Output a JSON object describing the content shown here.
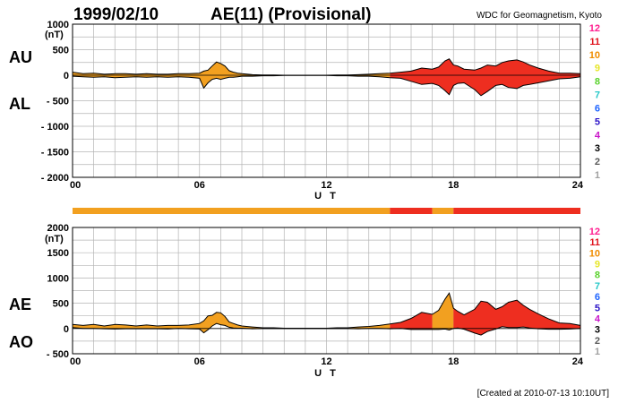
{
  "header": {
    "date": "1999/02/10",
    "title": "AE(11) (Provisional)",
    "source": "WDC for Geomagnetism, Kyoto"
  },
  "footer": {
    "created": "[Created at 2010-07-13 10:10UT]"
  },
  "colors": {
    "grid": "#b4b4b4",
    "band": "#f2a020",
    "band_hi": "#ee2e20",
    "fill_orange": "#f2a020",
    "fill_red": "#ee2e20",
    "outline": "#000000"
  },
  "chart_data": [
    {
      "type": "area",
      "name": "AU/AL panel",
      "series_labels": [
        "AU",
        "AL"
      ],
      "unit_label": "(nT)",
      "xlabel": "U T",
      "xlim": [
        0,
        24
      ],
      "x_ticks": [
        "00",
        "06",
        "12",
        "18",
        "24"
      ],
      "ylim": [
        -2000,
        1000
      ],
      "y_ticks": [
        "1000",
        "500",
        "0",
        "- 500",
        "- 1000",
        "- 1500",
        "- 2000"
      ],
      "legend_numbers": [
        "12",
        "11",
        "10",
        "9",
        "8",
        "7",
        "6",
        "5",
        "4",
        "3",
        "2",
        "1"
      ],
      "legend_colors": [
        "#ff1e90",
        "#e0141e",
        "#f08c00",
        "#e6e628",
        "#5ad22d",
        "#28c8c8",
        "#1e64ff",
        "#2d14c8",
        "#c814c8",
        "#000000",
        "#5a5a5a",
        "#a0a0a0"
      ],
      "station_count_segments": [
        {
          "from": 0,
          "to": 15,
          "stations": 10
        },
        {
          "from": 15,
          "to": 24,
          "stations": 11
        }
      ],
      "x": [
        0,
        0.5,
        1,
        1.5,
        2,
        2.5,
        3,
        3.5,
        4,
        4.5,
        5,
        5.5,
        6,
        6.2,
        6.4,
        6.6,
        6.8,
        7,
        7.2,
        7.4,
        7.6,
        7.8,
        8,
        8.5,
        9,
        9.5,
        10,
        10.5,
        11,
        11.5,
        12,
        12.5,
        13,
        13.5,
        14,
        14.5,
        15,
        15.5,
        16,
        16.5,
        17,
        17.3,
        17.6,
        17.8,
        18,
        18.2,
        18.5,
        19,
        19.3,
        19.6,
        20,
        20.3,
        20.6,
        21,
        21.3,
        21.6,
        22,
        22.5,
        23,
        23.5,
        24
      ],
      "series": [
        {
          "name": "AU",
          "values": [
            60,
            30,
            40,
            20,
            30,
            30,
            20,
            30,
            20,
            20,
            30,
            30,
            40,
            80,
            100,
            180,
            260,
            230,
            180,
            90,
            60,
            40,
            30,
            10,
            5,
            5,
            0,
            0,
            0,
            0,
            0,
            5,
            5,
            10,
            20,
            30,
            40,
            60,
            80,
            140,
            120,
            160,
            280,
            320,
            200,
            180,
            120,
            100,
            140,
            200,
            180,
            250,
            280,
            300,
            260,
            200,
            140,
            80,
            40,
            40,
            30
          ]
        },
        {
          "name": "AL",
          "values": [
            -20,
            -30,
            -40,
            -30,
            -50,
            -40,
            -30,
            -40,
            -30,
            -40,
            -30,
            -40,
            -60,
            -250,
            -150,
            -80,
            -60,
            -80,
            -60,
            -40,
            -40,
            -30,
            -20,
            -20,
            -10,
            -10,
            -5,
            -5,
            -5,
            -5,
            -5,
            -10,
            -10,
            -20,
            -20,
            -30,
            -50,
            -60,
            -120,
            -180,
            -160,
            -200,
            -300,
            -380,
            -200,
            -160,
            -150,
            -280,
            -400,
            -320,
            -200,
            -180,
            -240,
            -260,
            -200,
            -180,
            -150,
            -110,
            -70,
            -60,
            -30
          ]
        }
      ]
    },
    {
      "type": "area",
      "name": "AE/AO panel",
      "series_labels": [
        "AE",
        "AO"
      ],
      "unit_label": "(nT)",
      "xlabel": "U T",
      "xlim": [
        0,
        24
      ],
      "x_ticks": [
        "00",
        "06",
        "12",
        "18",
        "24"
      ],
      "ylim": [
        -500,
        2000
      ],
      "y_ticks": [
        "2000",
        "1500",
        "1000",
        "500",
        "0",
        "- 500"
      ],
      "legend_numbers": [
        "12",
        "11",
        "10",
        "9",
        "8",
        "7",
        "6",
        "5",
        "4",
        "3",
        "2",
        "1"
      ],
      "legend_colors": [
        "#ff1e90",
        "#e0141e",
        "#f08c00",
        "#e6e628",
        "#5ad22d",
        "#28c8c8",
        "#1e64ff",
        "#2d14c8",
        "#c814c8",
        "#000000",
        "#5a5a5a",
        "#a0a0a0"
      ],
      "station_count_segments": [
        {
          "from": 0,
          "to": 15,
          "stations": 10
        },
        {
          "from": 15,
          "to": 17,
          "stations": 11
        },
        {
          "from": 17,
          "to": 18,
          "stations": 10
        },
        {
          "from": 18,
          "to": 24,
          "stations": 11
        }
      ],
      "x": [
        0,
        0.5,
        1,
        1.5,
        2,
        2.5,
        3,
        3.5,
        4,
        4.5,
        5,
        5.5,
        6,
        6.2,
        6.4,
        6.6,
        6.8,
        7,
        7.2,
        7.4,
        7.6,
        7.8,
        8,
        8.5,
        9,
        9.5,
        10,
        10.5,
        11,
        11.5,
        12,
        12.5,
        13,
        13.5,
        14,
        14.5,
        15,
        15.5,
        16,
        16.5,
        17,
        17.3,
        17.6,
        17.8,
        18,
        18.2,
        18.5,
        19,
        19.3,
        19.6,
        20,
        20.3,
        20.6,
        21,
        21.3,
        21.6,
        22,
        22.5,
        23,
        23.5,
        24
      ],
      "series": [
        {
          "name": "AE",
          "values": [
            80,
            60,
            80,
            50,
            80,
            70,
            50,
            70,
            50,
            60,
            60,
            70,
            100,
            150,
            250,
            260,
            320,
            310,
            240,
            130,
            100,
            70,
            50,
            30,
            15,
            15,
            5,
            5,
            5,
            5,
            5,
            15,
            15,
            30,
            40,
            60,
            90,
            120,
            200,
            320,
            280,
            360,
            580,
            700,
            400,
            340,
            270,
            380,
            540,
            520,
            380,
            430,
            520,
            560,
            460,
            380,
            290,
            190,
            110,
            100,
            60
          ]
        },
        {
          "name": "AO",
          "values": [
            20,
            0,
            0,
            -5,
            -10,
            -5,
            -5,
            -5,
            -5,
            -10,
            0,
            -5,
            -10,
            -85,
            -25,
            50,
            100,
            75,
            60,
            25,
            10,
            5,
            5,
            -5,
            -2,
            -2,
            -2,
            -2,
            -2,
            -2,
            -2,
            -2,
            -2,
            -5,
            0,
            0,
            -5,
            0,
            -20,
            -20,
            -20,
            -20,
            -10,
            -30,
            0,
            10,
            -15,
            -90,
            -130,
            -60,
            -10,
            35,
            20,
            20,
            30,
            10,
            -5,
            -15,
            -15,
            -10,
            0
          ]
        }
      ]
    }
  ]
}
